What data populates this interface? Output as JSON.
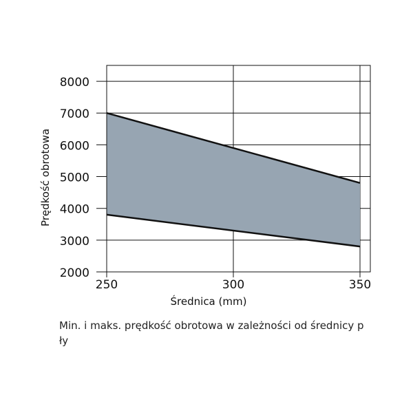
{
  "chart_data": {
    "type": "area",
    "xlabel": "Średnica (mm)",
    "ylabel": "Prędkość obrotowa",
    "xlim": [
      250,
      350
    ],
    "ylim": [
      2000,
      8500
    ],
    "x_ticks": [
      "250",
      "300",
      "350"
    ],
    "y_ticks": [
      "2000",
      "3000",
      "4000",
      "5000",
      "6000",
      "7000",
      "8000"
    ],
    "grid": true,
    "fill_color": "#97a5b2",
    "line_color": "#111111",
    "series": [
      {
        "x": [
          250,
          350
        ],
        "values": [
          3800,
          2800
        ]
      },
      {
        "x": [
          250,
          350
        ],
        "values": [
          7000,
          4800
        ]
      }
    ]
  },
  "caption": "Min. i maks. prędkość obrotowa w zależności od średnicy p ły"
}
